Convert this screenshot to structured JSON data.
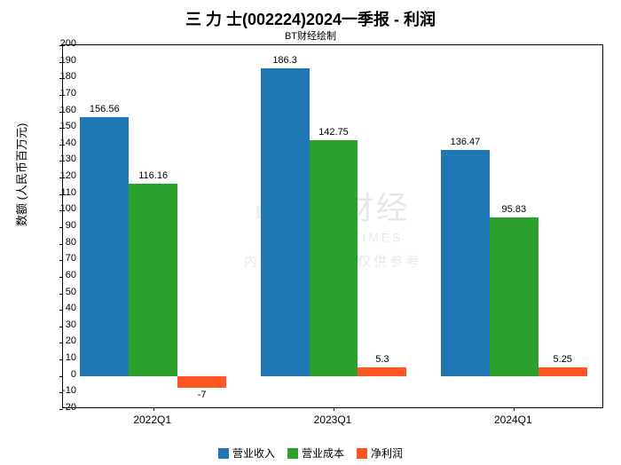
{
  "chart": {
    "type": "bar",
    "title": "三 力 士(002224)2024一季报 - 利润",
    "subtitle": "BT财经绘制",
    "y_label": "数额 (人民币百万元)",
    "ylim": [
      -20,
      200
    ],
    "ytick_step": 10,
    "background_color": "#ffffff",
    "border_color": "#000000",
    "categories": [
      "2022Q1",
      "2023Q1",
      "2024Q1"
    ],
    "series": [
      {
        "name": "营业收入",
        "color": "#1f77b4",
        "values": [
          156.56,
          186.3,
          136.47
        ]
      },
      {
        "name": "营业成本",
        "color": "#2ca02c",
        "values": [
          116.16,
          142.75,
          95.83
        ]
      },
      {
        "name": "净利润",
        "color": "#ff5722",
        "values": [
          -7,
          5.3,
          5.25
        ]
      }
    ],
    "bar_width_ratio": 0.27,
    "group_gap_ratio": 0.19,
    "title_fontsize": 18,
    "subtitle_fontsize": 11,
    "label_fontsize": 13,
    "tick_fontsize": 11,
    "value_label_fontsize": 11,
    "legend_fontsize": 12
  },
  "watermark": {
    "main": "BT财经",
    "sub_en": "BUSINESS TIMES",
    "sub_zh": "内容由AI生成，仅供参考"
  }
}
